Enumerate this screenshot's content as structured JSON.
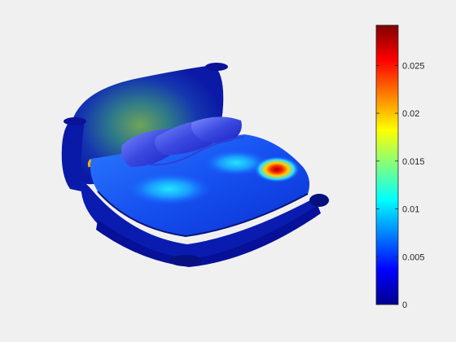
{
  "figure": {
    "background": "#f0f0f0",
    "colormap": "jet",
    "colorbar": {
      "min": 0,
      "max": 0.0292,
      "ticks": [
        {
          "value": 0,
          "label": "0"
        },
        {
          "value": 0.005,
          "label": "0.005"
        },
        {
          "value": 0.01,
          "label": "0.01"
        },
        {
          "value": 0.015,
          "label": "0.015"
        },
        {
          "value": 0.02,
          "label": "0.02"
        },
        {
          "value": 0.025,
          "label": "0.025"
        }
      ]
    }
  }
}
